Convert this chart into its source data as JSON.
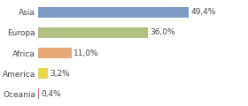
{
  "categories": [
    "Asia",
    "Europa",
    "Africa",
    "America",
    "Oceania"
  ],
  "values": [
    49.4,
    36.0,
    11.0,
    3.2,
    0.4
  ],
  "labels": [
    "49,4%",
    "36,0%",
    "11,0%",
    "3,2%",
    "0,4%"
  ],
  "bar_colors": [
    "#7a9cc4",
    "#b0c080",
    "#e8aa78",
    "#e8d848",
    "#e07070"
  ],
  "background_color": "#ffffff",
  "xlim": [
    0,
    68
  ],
  "label_fontsize": 6.5,
  "tick_fontsize": 6.5
}
